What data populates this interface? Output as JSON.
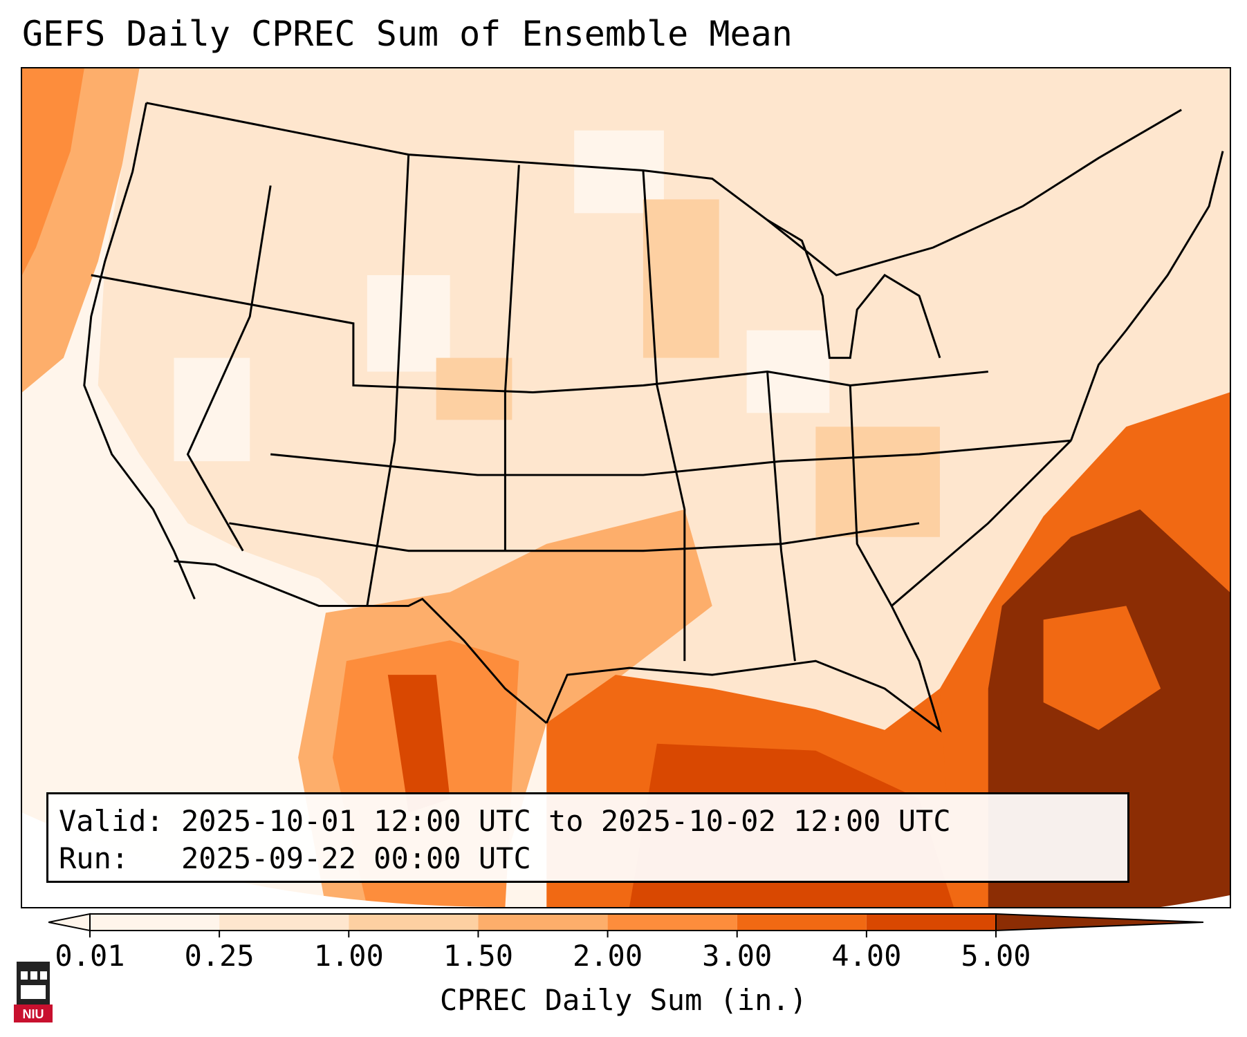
{
  "title": "GEFS Daily CPREC Sum of Ensemble Mean",
  "info": {
    "valid_label": "Valid:",
    "valid_value": "2025-10-01 12:00 UTC to 2025-10-02 12:00 UTC",
    "run_label": "Run:",
    "run_value": "2025-09-22 00:00 UTC"
  },
  "colorbar": {
    "label": "CPREC Daily Sum (in.)",
    "ticks": [
      "0.01",
      "0.25",
      "1.00",
      "1.50",
      "2.00",
      "3.00",
      "4.00",
      "5.00"
    ],
    "colors": [
      "#fff5eb",
      "#fee6ce",
      "#fdd0a2",
      "#fdae6b",
      "#fd8d3c",
      "#f16913",
      "#d94801",
      "#8c2d04"
    ]
  },
  "logo": {
    "text": "NIU",
    "color": "#c8102e"
  },
  "colors": {
    "ocean_light": "#fff5eb",
    "land_light": "#fee6ce",
    "border": "#000000"
  }
}
